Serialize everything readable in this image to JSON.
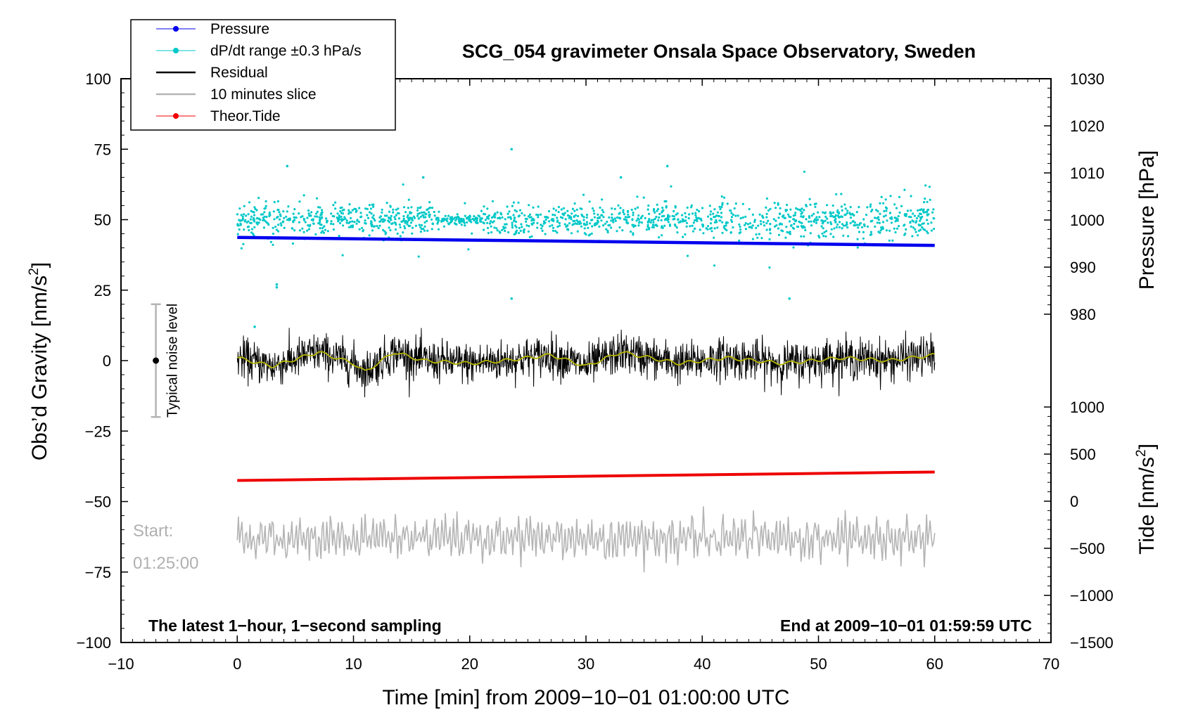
{
  "chart_data": {
    "type": "scatter",
    "title": "SCG_054 gravimeter Onsala Space Observatory, Sweden",
    "xlabel": "Time [min] from 2009−10−01 01:00:00 UTC",
    "ylabel_left": "Obs’d Gravity [nm/s²]",
    "ylabel_left_main": "Obs’d Gravity [nm/s",
    "ylabel_left_sup": "2",
    "ylabel_left_close": "]",
    "ylabel_pressure": "Pressure [hPa]",
    "ylabel_tide": "Tide [nm/s²]",
    "ylabel_tide_main": "Tide [nm/s",
    "ylabel_tide_sup": "2",
    "ylabel_tide_close": "]",
    "xlim": [
      -10,
      70
    ],
    "ylim_left": [
      -100,
      100
    ],
    "ylim_pressure": [
      980,
      1030
    ],
    "ylim_tide": [
      -1500,
      1000
    ],
    "x_ticks": [
      -10,
      0,
      10,
      20,
      30,
      40,
      50,
      60,
      70
    ],
    "x_tick_labels": [
      "−10",
      "0",
      "10",
      "20",
      "30",
      "40",
      "50",
      "60",
      "70"
    ],
    "y_left_ticks": [
      100,
      75,
      50,
      25,
      0,
      -25,
      -50,
      -75,
      -100
    ],
    "y_left_tick_labels": [
      "100",
      "75",
      "50",
      "25",
      "0",
      "−25",
      "−50",
      "−75",
      "−100"
    ],
    "pressure_ticks": [
      1030,
      1020,
      1010,
      1000,
      990,
      980
    ],
    "pressure_tick_labels": [
      "1030",
      "1020",
      "1010",
      "1000",
      "990",
      "980"
    ],
    "tide_ticks": [
      1000,
      500,
      0,
      -500,
      -1000,
      -1500
    ],
    "tide_tick_labels": [
      "1000",
      "500",
      "0",
      "−500",
      "−1000",
      "−1500"
    ],
    "legend": {
      "placement": "top-left",
      "entries": [
        {
          "label": "Pressure",
          "color": "#0000ee",
          "style": "line-dot"
        },
        {
          "label": "dP/dt range ±0.3 hPa/s",
          "color": "#00c8c8",
          "style": "line-dot"
        },
        {
          "label": "Residual",
          "color": "#000000",
          "style": "line"
        },
        {
          "label": "10 minutes slice",
          "color": "#b4b4b4",
          "style": "line"
        },
        {
          "label": "Theor.Tide",
          "color": "#ee0000",
          "style": "line-dot"
        }
      ]
    },
    "series": [
      {
        "name": "Pressure",
        "axis": "pressure",
        "color": "#0000ee",
        "x": [
          0,
          60
        ],
        "y": [
          996.3,
          994.6
        ]
      },
      {
        "name": "dP/dt range ±0.3 hPa/s",
        "axis": "left",
        "color": "#00c8c8",
        "center": 50,
        "x_range": [
          0,
          60
        ],
        "typical_spread": 6,
        "outliers": [
          {
            "x": 23.6,
            "y": 75
          },
          {
            "x": 3.4,
            "y": 27
          },
          {
            "x": 3.4,
            "y": 26
          },
          {
            "x": 23.6,
            "y": 22
          },
          {
            "x": 47.5,
            "y": 22
          },
          {
            "x": 1.5,
            "y": 12
          },
          {
            "x": 4.3,
            "y": 69
          },
          {
            "x": 37,
            "y": 69
          },
          {
            "x": 16,
            "y": 65
          },
          {
            "x": 33,
            "y": 65
          }
        ]
      },
      {
        "name": "Residual",
        "axis": "left",
        "color": "#000000",
        "center": 0,
        "x_range": [
          0,
          60
        ],
        "typical_range": [
          -12,
          12
        ]
      },
      {
        "name": "Residual (smoothed)",
        "axis": "left",
        "color": "#b4b400",
        "x": [
          0,
          3,
          7,
          10,
          11,
          13.5,
          16,
          20,
          23,
          27,
          30,
          33,
          38,
          42,
          47,
          52,
          56,
          60
        ],
        "y": [
          1,
          -2,
          3,
          -1,
          -4,
          3,
          0,
          -1,
          0,
          2,
          -2,
          3,
          -1,
          1,
          -1,
          1,
          0,
          2
        ]
      },
      {
        "name": "10 minutes slice",
        "axis": "left",
        "color": "#b4b4b4",
        "center": -63,
        "x_range": [
          0,
          60
        ],
        "typical_range": [
          -74,
          -52
        ]
      },
      {
        "name": "Theor.Tide",
        "axis": "tide",
        "color": "#ee0000",
        "x": [
          0,
          60
        ],
        "y": [
          220,
          310
        ]
      }
    ],
    "noise_bar": {
      "label": "Typical noise level",
      "x": -7,
      "y": 0,
      "low": -20,
      "high": 20
    },
    "annotations": {
      "start_label": "Start:",
      "start_time": "01:25:00",
      "bottom_left": "The latest 1−hour, 1−second sampling",
      "bottom_right": "End at 2009−10−01 01:59:59 UTC"
    }
  }
}
